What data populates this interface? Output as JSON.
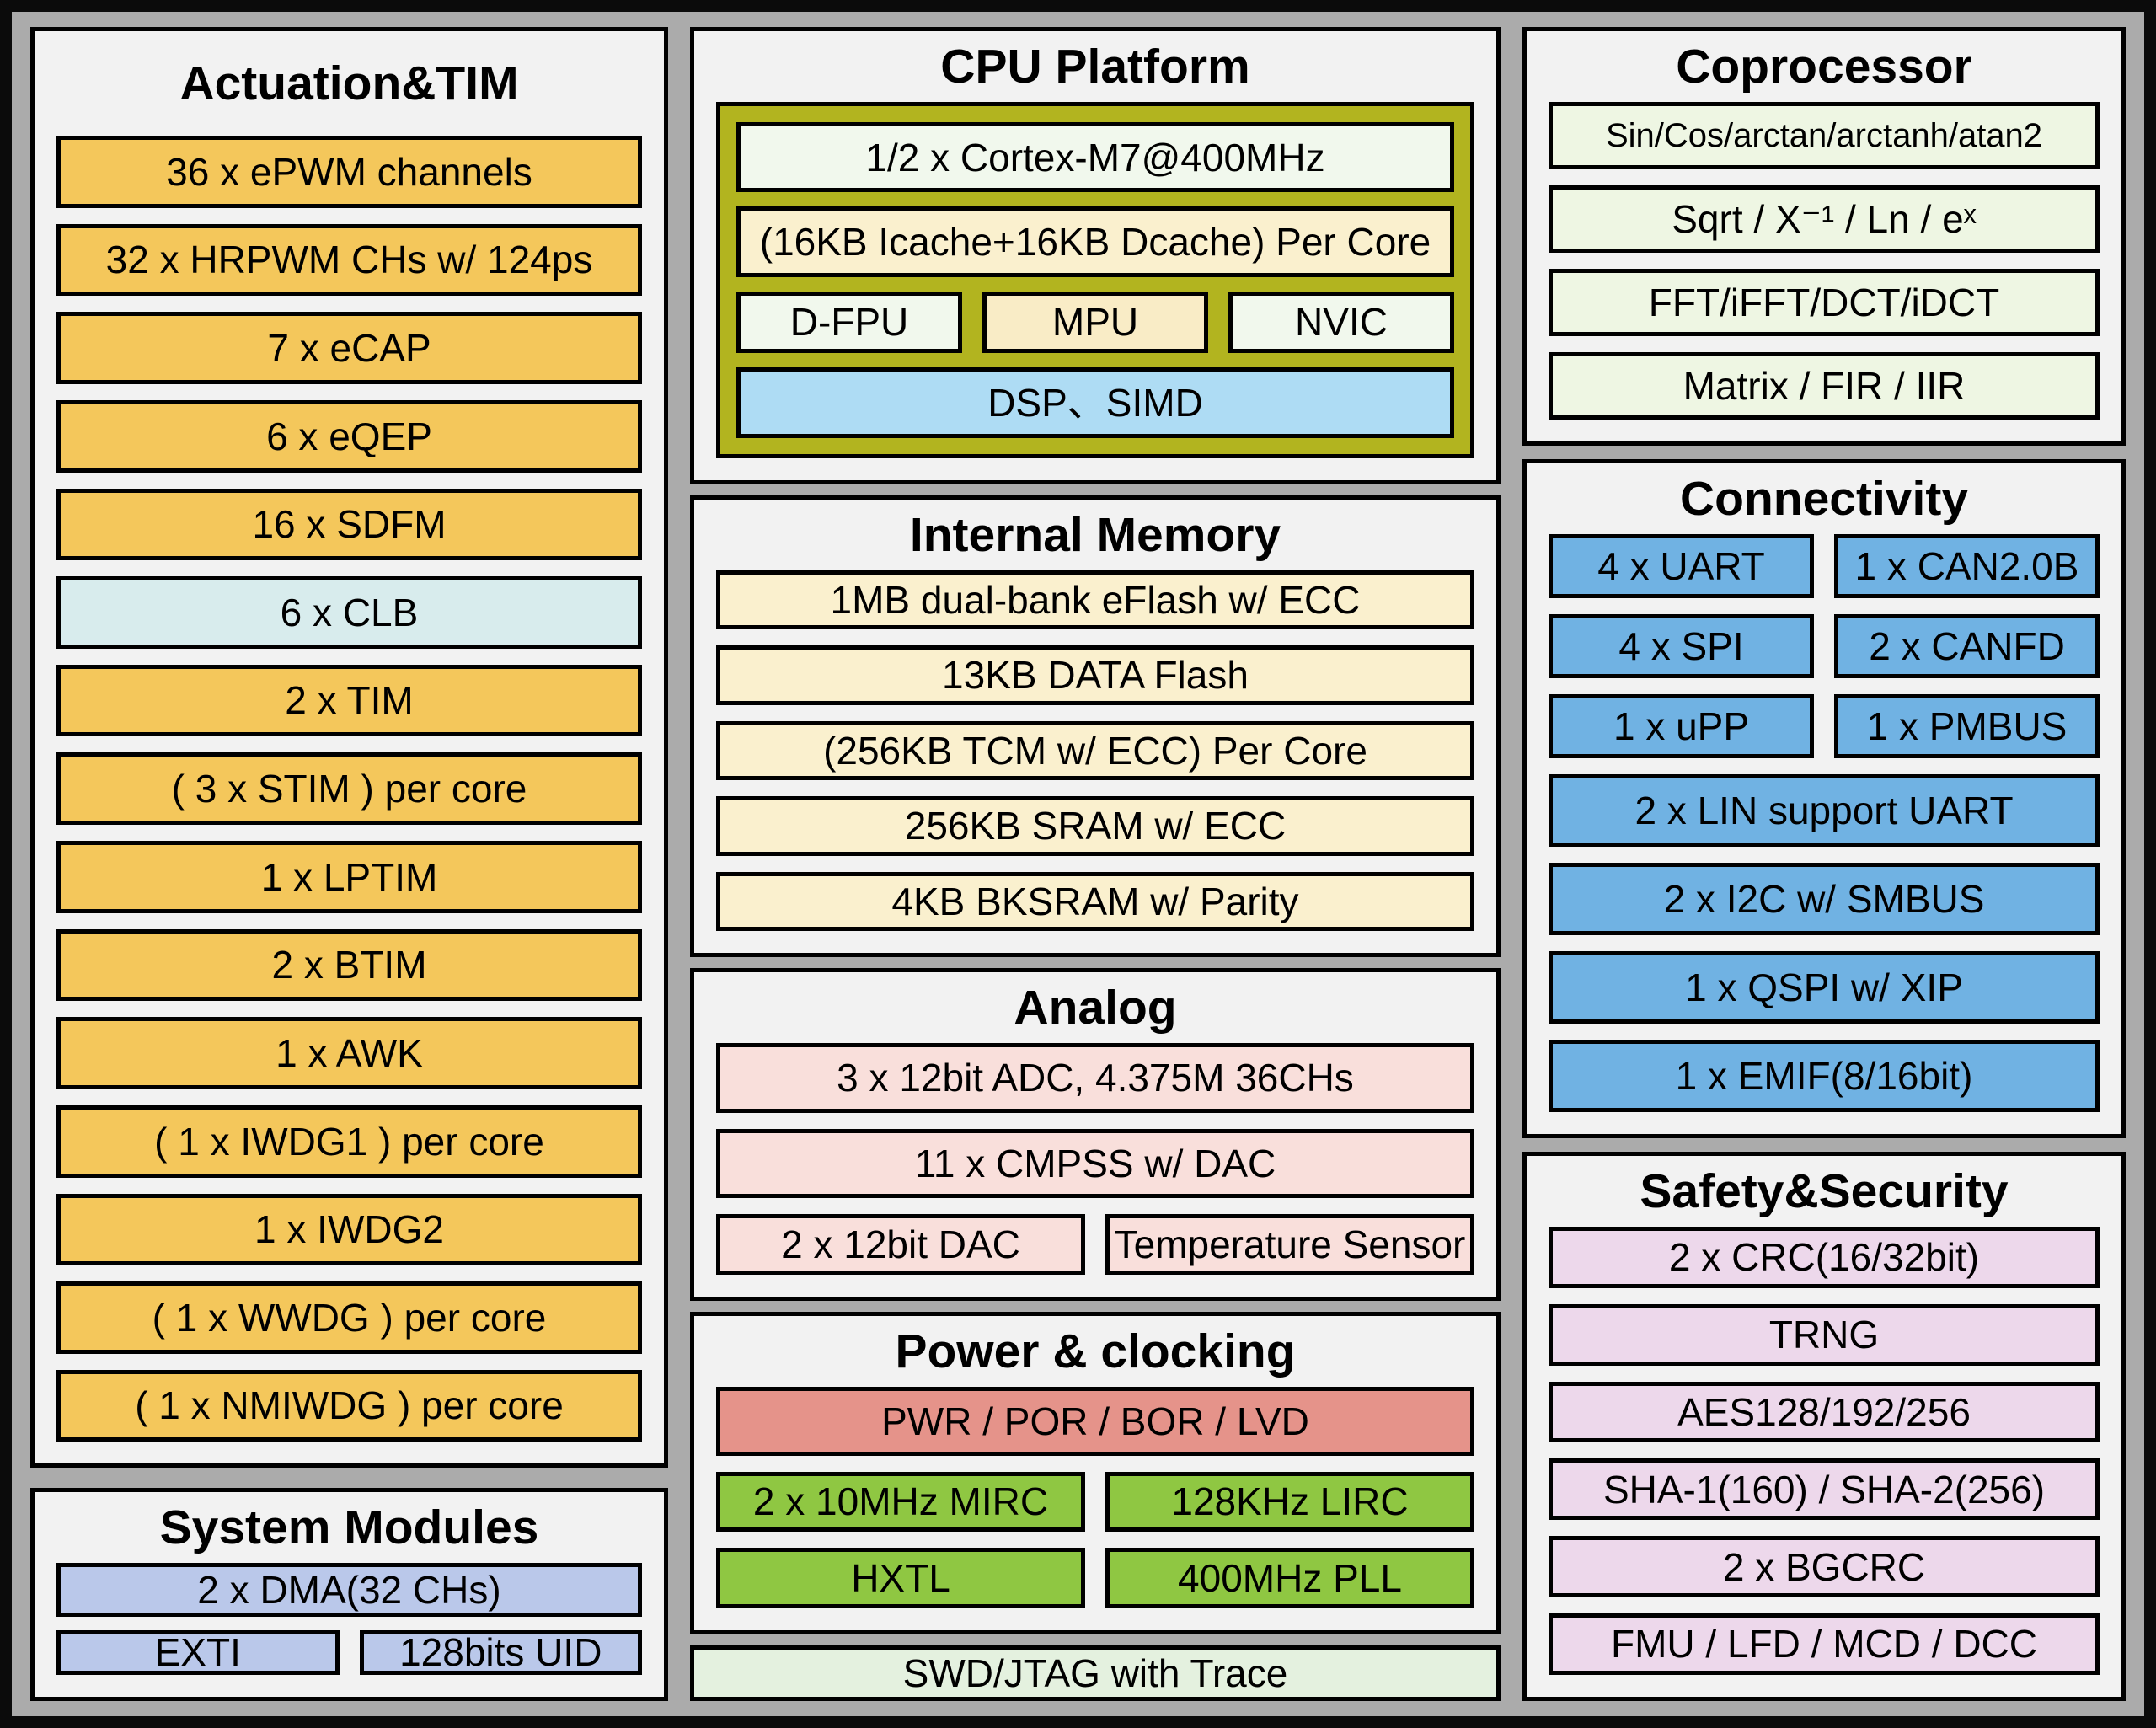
{
  "palette": {
    "background_gray": "#ababab",
    "frame_black": "#0b0b0b",
    "panel_gray": "#f2f2f2",
    "timer_yellow": "#f4c75b",
    "clb_cyan": "#d8eced",
    "system_periwinkle": "#bac8ea",
    "cpu_olive": "#b2b41f",
    "core_pale_green": "#f1f8ed",
    "cache_cream": "#faf0ce",
    "mpu_cream": "#f9ecc6",
    "dsp_blue": "#aedcf4",
    "memory_cream": "#faf0ce",
    "analog_pink": "#f9dfdb",
    "power_salmon": "#e5938a",
    "clock_green": "#8fc742",
    "debug_pale_green": "#e4f1df",
    "coprocessor_pale_green": "#eef6e3",
    "connectivity_blue": "#70b2e3",
    "safety_lavender": "#edd8eb"
  },
  "actuation": {
    "title": "Actuation&TIM",
    "items": [
      "36 x ePWM channels",
      "32 x HRPWM CHs w/ 124ps",
      "7 x eCAP",
      "6 x eQEP",
      "16 x SDFM",
      "6 x CLB",
      "2 x TIM",
      "( 3 x STIM ) per core",
      "1 x LPTIM",
      "2 x BTIM",
      "1 x AWK",
      "( 1 x IWDG1 ) per core",
      "1 x IWDG2",
      "( 1 x WWDG ) per core",
      "( 1 x NMIWDG ) per core"
    ]
  },
  "system_modules": {
    "title": "System Modules",
    "dma": "2 x DMA(32 CHs)",
    "exti": "EXTI",
    "uid": "128bits UID"
  },
  "cpu": {
    "title": "CPU Platform",
    "core": "1/2 x Cortex-M7@400MHz",
    "cache": "(16KB Icache+16KB Dcache) Per Core",
    "dfpu": "D-FPU",
    "mpu": "MPU",
    "nvic": "NVIC",
    "dsp": "DSP、SIMD"
  },
  "internal_memory": {
    "title": "Internal Memory",
    "items": [
      "1MB dual-bank eFlash w/ ECC",
      "13KB DATA Flash",
      "(256KB TCM w/ ECC) Per Core",
      "256KB SRAM w/ ECC",
      "4KB BKSRAM w/ Parity"
    ]
  },
  "analog": {
    "title": "Analog",
    "adc": "3 x 12bit ADC, 4.375M 36CHs",
    "cmpss": "11 x CMPSS w/ DAC",
    "dac": "2 x 12bit DAC",
    "temp": "Temperature Sensor"
  },
  "power": {
    "title": "Power & clocking",
    "pwr": "PWR / POR / BOR / LVD",
    "mirc": "2 x 10MHz MIRC",
    "lirc": "128KHz LIRC",
    "hxtl": "HXTL",
    "pll": "400MHz PLL"
  },
  "debug": {
    "swd": "SWD/JTAG with Trace"
  },
  "coprocessor": {
    "title": "Coprocessor",
    "items": [
      "Sin/Cos/arctan/arctanh/atan2",
      "Sqrt / X⁻¹ / Ln / eˣ",
      "FFT/iFFT/DCT/iDCT",
      "Matrix / FIR / IIR"
    ]
  },
  "connectivity": {
    "title": "Connectivity",
    "uart": "4 x UART",
    "can": "1 x CAN2.0B",
    "spi": "4 x SPI",
    "canfd": "2 x CANFD",
    "upp": "1 x uPP",
    "pmbus": "1 x PMBUS",
    "lin": "2 x LIN support UART",
    "i2c": "2 x I2C w/ SMBUS",
    "qspi": "1 x QSPI w/ XIP",
    "emif": "1 x EMIF(8/16bit)"
  },
  "safety": {
    "title": "Safety&Security",
    "items": [
      "2 x CRC(16/32bit)",
      "TRNG",
      "AES128/192/256",
      "SHA-1(160) / SHA-2(256)",
      "2 x BGCRC",
      "FMU / LFD / MCD / DCC"
    ]
  }
}
